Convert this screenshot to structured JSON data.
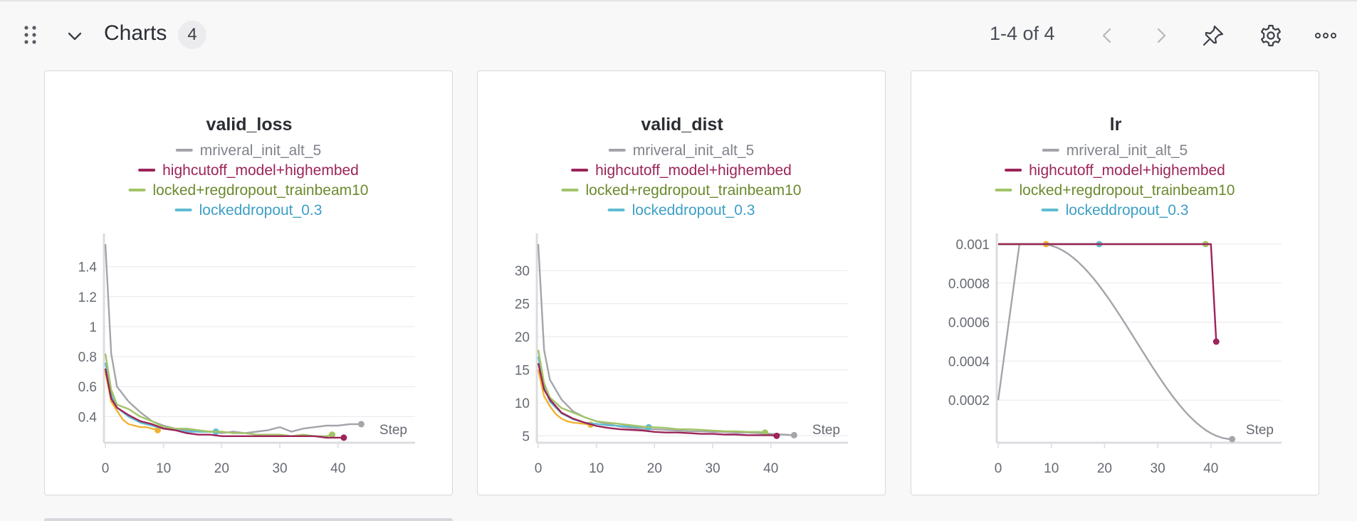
{
  "header": {
    "section_title": "Charts",
    "count": "4",
    "pager": "1-4 of 4",
    "icons": [
      "drag-handle-icon",
      "chevron-down-icon",
      "chevron-left-icon",
      "chevron-right-icon",
      "pin-icon",
      "gear-icon",
      "more-horizontal-icon"
    ]
  },
  "colors": {
    "mriveral_init_alt_5": "#a3a5aa",
    "highcutoff_model+highembed": "#9c2459",
    "locked+regdropout_trainbeam10": "#a3c467",
    "lockeddropout_0.3": "#5fbdd2",
    "extra_run": "#f2b233"
  },
  "chart_data": [
    {
      "type": "line",
      "title": "valid_loss",
      "xlabel": "Step",
      "xlim": [
        0,
        44
      ],
      "ylim": [
        0.25,
        1.55
      ],
      "xticks": [
        "0",
        "10",
        "20",
        "30",
        "40"
      ],
      "yticks": [
        "0.4",
        "0.6",
        "0.8",
        "1",
        "1.2",
        "1.4"
      ],
      "legend": [
        "mriveral_init_alt_5",
        "highcutoff_model+highembed",
        "locked+regdropout_trainbeam10",
        "lockeddropout_0.3"
      ],
      "series": [
        {
          "name": "mriveral_init_alt_5",
          "x": [
            0,
            1,
            2,
            4,
            6,
            8,
            10,
            12,
            14,
            16,
            18,
            20,
            22,
            24,
            26,
            28,
            30,
            32,
            34,
            36,
            38,
            40,
            42,
            44
          ],
          "y": [
            1.55,
            0.82,
            0.6,
            0.5,
            0.43,
            0.37,
            0.34,
            0.32,
            0.31,
            0.3,
            0.3,
            0.29,
            0.3,
            0.29,
            0.3,
            0.31,
            0.33,
            0.3,
            0.32,
            0.33,
            0.34,
            0.34,
            0.35,
            0.35
          ]
        },
        {
          "name": "highcutoff_model+highembed",
          "x": [
            0,
            1,
            2,
            4,
            6,
            8,
            10,
            12,
            14,
            16,
            18,
            20,
            22,
            24,
            26,
            28,
            30,
            32,
            34,
            36,
            38,
            40,
            41
          ],
          "y": [
            0.72,
            0.52,
            0.46,
            0.41,
            0.37,
            0.35,
            0.32,
            0.31,
            0.29,
            0.28,
            0.28,
            0.27,
            0.27,
            0.27,
            0.27,
            0.27,
            0.27,
            0.27,
            0.27,
            0.27,
            0.26,
            0.26,
            0.26
          ]
        },
        {
          "name": "locked+regdropout_trainbeam10",
          "x": [
            0,
            1,
            2,
            4,
            6,
            8,
            10,
            12,
            14,
            16,
            18,
            20,
            22,
            24,
            26,
            28,
            30,
            32,
            34,
            36,
            38,
            39
          ],
          "y": [
            0.82,
            0.58,
            0.48,
            0.45,
            0.4,
            0.37,
            0.33,
            0.32,
            0.32,
            0.31,
            0.3,
            0.3,
            0.29,
            0.29,
            0.28,
            0.28,
            0.28,
            0.27,
            0.28,
            0.27,
            0.27,
            0.28
          ]
        },
        {
          "name": "lockeddropout_0.3",
          "x": [
            0,
            1,
            2,
            4,
            6,
            8,
            10,
            12,
            14,
            16,
            18,
            19
          ],
          "y": [
            0.76,
            0.55,
            0.46,
            0.4,
            0.36,
            0.34,
            0.32,
            0.31,
            0.3,
            0.3,
            0.3,
            0.3
          ]
        },
        {
          "name": "",
          "x": [
            0,
            1,
            2,
            3,
            4,
            5,
            6,
            7,
            8,
            9
          ],
          "y": [
            0.7,
            0.5,
            0.44,
            0.38,
            0.35,
            0.34,
            0.33,
            0.33,
            0.32,
            0.31
          ]
        }
      ]
    },
    {
      "type": "line",
      "title": "valid_dist",
      "xlabel": "Step",
      "xlim": [
        0,
        44
      ],
      "ylim": [
        4.5,
        34
      ],
      "xticks": [
        "0",
        "10",
        "20",
        "30",
        "40"
      ],
      "yticks": [
        "5",
        "10",
        "15",
        "20",
        "25",
        "30"
      ],
      "legend": [
        "mriveral_init_alt_5",
        "highcutoff_model+highembed",
        "locked+regdropout_trainbeam10",
        "lockeddropout_0.3"
      ],
      "series": [
        {
          "name": "mriveral_init_alt_5",
          "x": [
            0,
            1,
            2,
            4,
            6,
            8,
            10,
            12,
            14,
            16,
            18,
            20,
            22,
            24,
            26,
            28,
            30,
            32,
            34,
            36,
            38,
            40,
            42,
            44
          ],
          "y": [
            34,
            18,
            13.5,
            10.5,
            8.7,
            7.8,
            7.2,
            6.8,
            6.4,
            6.2,
            6,
            6,
            5.9,
            5.8,
            5.7,
            5.7,
            5.6,
            5.6,
            5.5,
            5.5,
            5.4,
            5.3,
            5.2,
            5.1
          ]
        },
        {
          "name": "highcutoff_model+highembed",
          "x": [
            0,
            1,
            2,
            4,
            6,
            8,
            10,
            12,
            14,
            16,
            18,
            20,
            22,
            24,
            26,
            28,
            30,
            32,
            34,
            36,
            38,
            40,
            41
          ],
          "y": [
            16,
            12,
            10.5,
            8.5,
            7.6,
            7,
            6.5,
            6.2,
            6,
            5.9,
            5.8,
            5.6,
            5.5,
            5.5,
            5.4,
            5.3,
            5.3,
            5.2,
            5.2,
            5.1,
            5.1,
            5.1,
            5
          ]
        },
        {
          "name": "locked+regdropout_trainbeam10",
          "x": [
            0,
            1,
            2,
            4,
            6,
            8,
            10,
            12,
            14,
            16,
            18,
            20,
            22,
            24,
            26,
            28,
            30,
            32,
            34,
            36,
            38,
            39
          ],
          "y": [
            18,
            13,
            10.8,
            9.2,
            8.5,
            7.8,
            7.2,
            7,
            6.8,
            6.6,
            6.4,
            6.3,
            6.2,
            6,
            6,
            5.9,
            5.8,
            5.7,
            5.7,
            5.6,
            5.6,
            5.5
          ]
        },
        {
          "name": "lockeddropout_0.3",
          "x": [
            0,
            1,
            2,
            4,
            6,
            8,
            10,
            12,
            14,
            16,
            18,
            19
          ],
          "y": [
            17,
            12.5,
            10.2,
            8.4,
            7.5,
            7,
            6.8,
            6.6,
            6.5,
            6.4,
            6.3,
            6.3
          ]
        },
        {
          "name": "",
          "x": [
            0,
            1,
            2,
            3,
            4,
            5,
            6,
            7,
            8,
            9
          ],
          "y": [
            15,
            11,
            9.5,
            8.3,
            7.6,
            7.2,
            7,
            6.9,
            6.8,
            6.7
          ]
        }
      ]
    },
    {
      "type": "line",
      "title": "lr",
      "xlabel": "Step",
      "xlim": [
        0,
        44
      ],
      "ylim": [
        0,
        0.001
      ],
      "xticks": [
        "0",
        "10",
        "20",
        "30",
        "40"
      ],
      "yticks": [
        "0.0002",
        "0.0004",
        "0.0006",
        "0.0008",
        "0.001"
      ],
      "legend": [
        "mriveral_init_alt_5",
        "highcutoff_model+highembed",
        "locked+regdropout_trainbeam10",
        "lockeddropout_0.3"
      ],
      "series": [
        {
          "name": "mriveral_init_alt_5",
          "x": [
            0,
            4,
            8,
            12,
            16,
            20,
            24,
            28,
            32,
            36,
            40,
            42,
            44
          ],
          "y": [
            0.0002,
            0.001,
            0.001,
            0.00095,
            0.00085,
            0.00072,
            0.00057,
            0.00042,
            0.00028,
            0.00016,
            6e-05,
            3e-05,
            0
          ]
        },
        {
          "name": "highcutoff_model+highembed",
          "x": [
            0,
            40,
            41
          ],
          "y": [
            0.001,
            0.001,
            0.0005
          ]
        },
        {
          "name": "locked+regdropout_trainbeam10",
          "x": [
            0,
            39
          ],
          "y": [
            0.001,
            0.001
          ]
        },
        {
          "name": "lockeddropout_0.3",
          "x": [
            0,
            19
          ],
          "y": [
            0.001,
            0.001
          ]
        },
        {
          "name": "",
          "x": [
            0,
            9
          ],
          "y": [
            0.001,
            0.001
          ]
        }
      ]
    }
  ]
}
